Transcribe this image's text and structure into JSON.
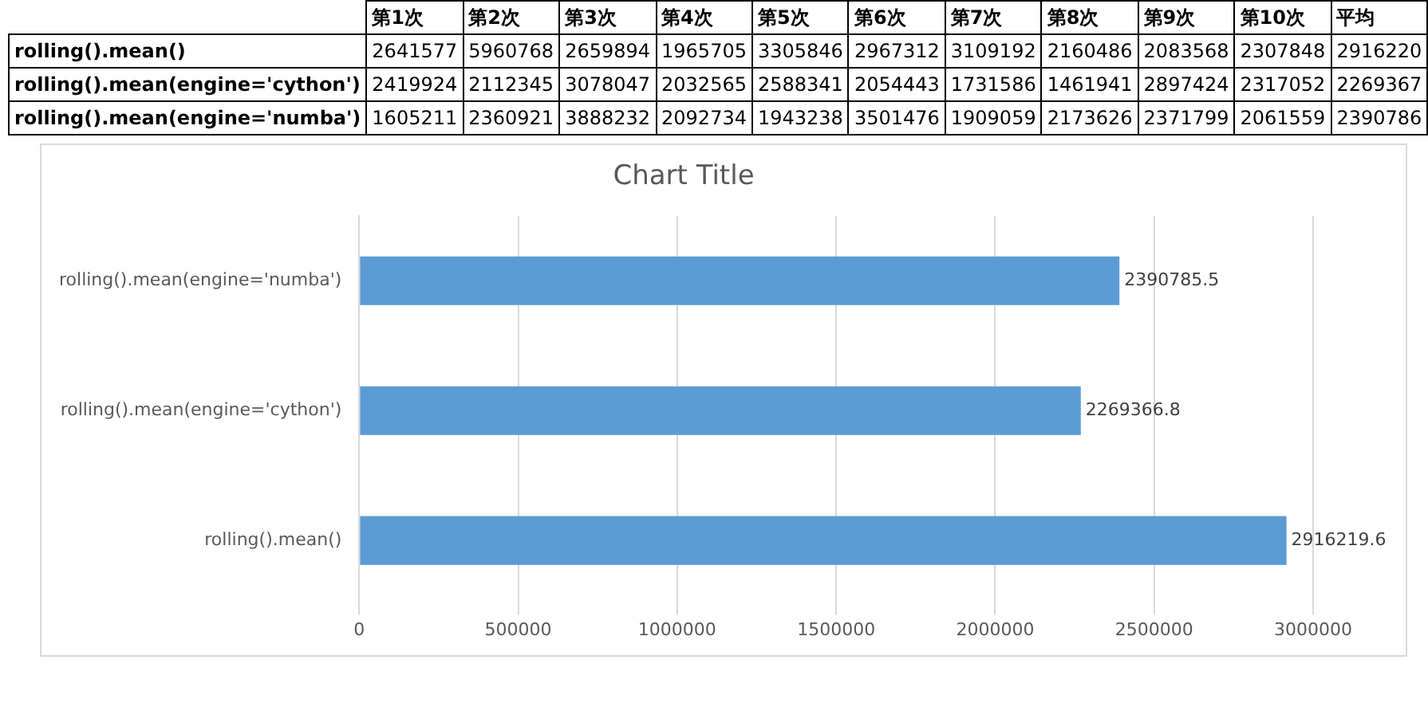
{
  "chart_data": [
    {
      "type": "heatmap",
      "categories": [
        "第1次",
        "第2次",
        "第3次",
        "第4次",
        "第5次",
        "第6次",
        "第7次",
        "第8次",
        "第9次",
        "第10次",
        "平均"
      ],
      "y_categories": [
        "rolling().mean()",
        "rolling().mean(engine='cython')",
        "rolling().mean(engine='numba')"
      ],
      "cells": [
        [
          2641577,
          5960768,
          2659894,
          1965705,
          3305846,
          2967312,
          3109192,
          2160486,
          2083568,
          2307848,
          2916220
        ],
        [
          2419924,
          2112345,
          3078047,
          2032565,
          2588341,
          2054443,
          1731586,
          1461941,
          2897424,
          2317052,
          2269367
        ],
        [
          1605211,
          2360921,
          3888232,
          2092734,
          1943238,
          3501476,
          1909059,
          2173626,
          2371799,
          2061559,
          2390786
        ]
      ],
      "data_labels": true
    },
    {
      "type": "bar",
      "orientation": "horizontal",
      "title": "Chart Title",
      "categories": [
        "rolling().mean(engine='numba')",
        "rolling().mean(engine='cython')",
        "rolling().mean()"
      ],
      "values": [
        2390785.5,
        2269366.8,
        2916219.6
      ],
      "color": "#5b9bd5",
      "xlim": [
        0,
        3000000
      ],
      "xticks": [
        0,
        500000,
        1000000,
        1500000,
        2000000,
        2500000,
        3000000
      ],
      "grid": "x",
      "data_labels": true
    }
  ]
}
